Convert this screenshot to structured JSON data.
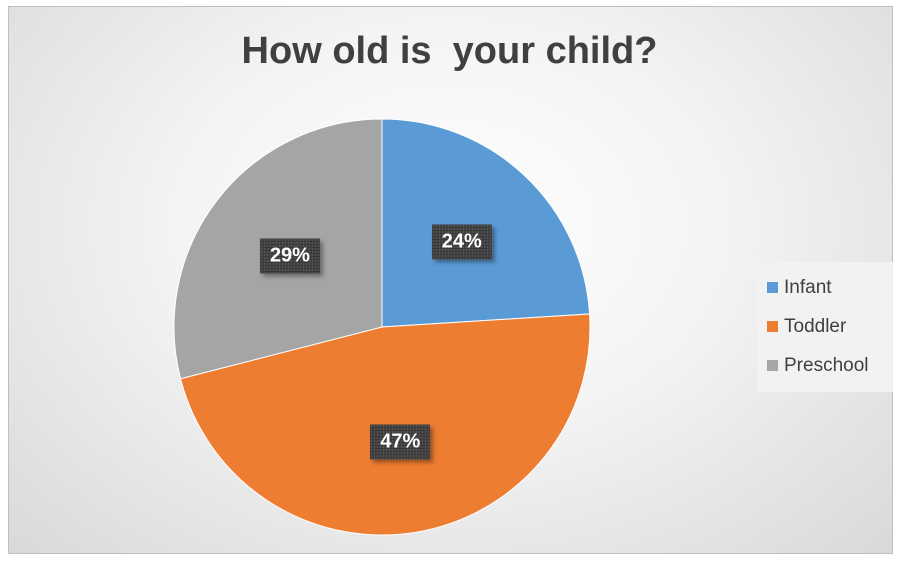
{
  "chart_data": {
    "type": "pie",
    "title": "How old is  your child?",
    "categories": [
      "Infant",
      "Toddler",
      "Preschool"
    ],
    "values": [
      24,
      47,
      29
    ],
    "labels": [
      "24%",
      "47%",
      "29%"
    ],
    "colors": [
      "#5b9bd5",
      "#ed7d31",
      "#a5a5a5"
    ],
    "start_angle_deg": 0,
    "direction": "clockwise",
    "legend_position": "right",
    "grid": false
  }
}
